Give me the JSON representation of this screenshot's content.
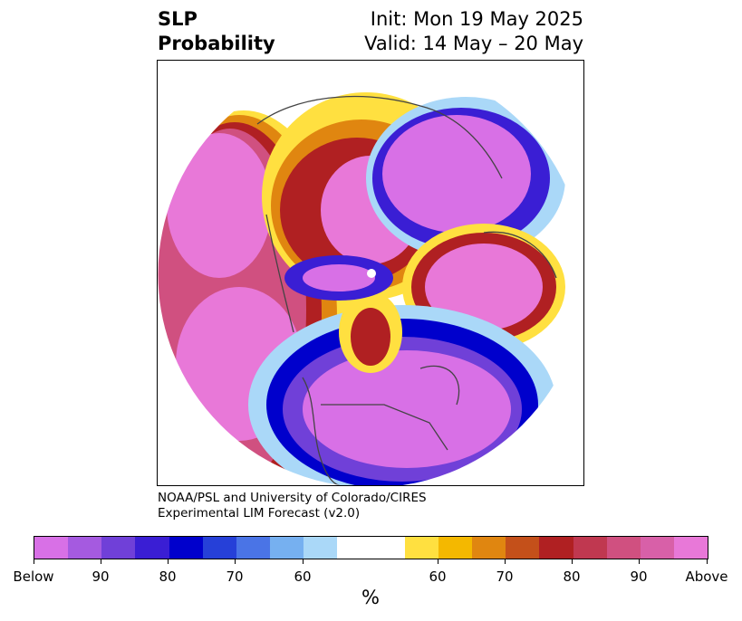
{
  "title": {
    "left_line1": "SLP",
    "left_line2": "Probability",
    "right_line1": "Init: Mon 19 May 2025",
    "right_line2": "Valid: 14 May – 20 May"
  },
  "credit": {
    "line1": "NOAA/PSL and University of Colorado/CIRES",
    "line2": "Experimental LIM Forecast (v2.0)"
  },
  "colorbar": {
    "colors": [
      "#d870e6",
      "#a55ae0",
      "#7040d8",
      "#3a1ed4",
      "#0000cc",
      "#2640d8",
      "#4a74e6",
      "#76b0f0",
      "#aad8f8",
      "#ffffff",
      "#ffffff",
      "#ffe040",
      "#f4b800",
      "#e08610",
      "#c4501a",
      "#b02022",
      "#c03850",
      "#d05080",
      "#d860a8",
      "#e878d8"
    ],
    "tick_labels": [
      "Below",
      "90",
      "80",
      "70",
      "60",
      "60",
      "70",
      "80",
      "90",
      "Above"
    ],
    "unit": "%"
  },
  "map": {
    "projection": "north-polar-stereographic",
    "legend_side_colors": {
      "below": "#d870e6",
      "above": "#e878d8"
    }
  }
}
